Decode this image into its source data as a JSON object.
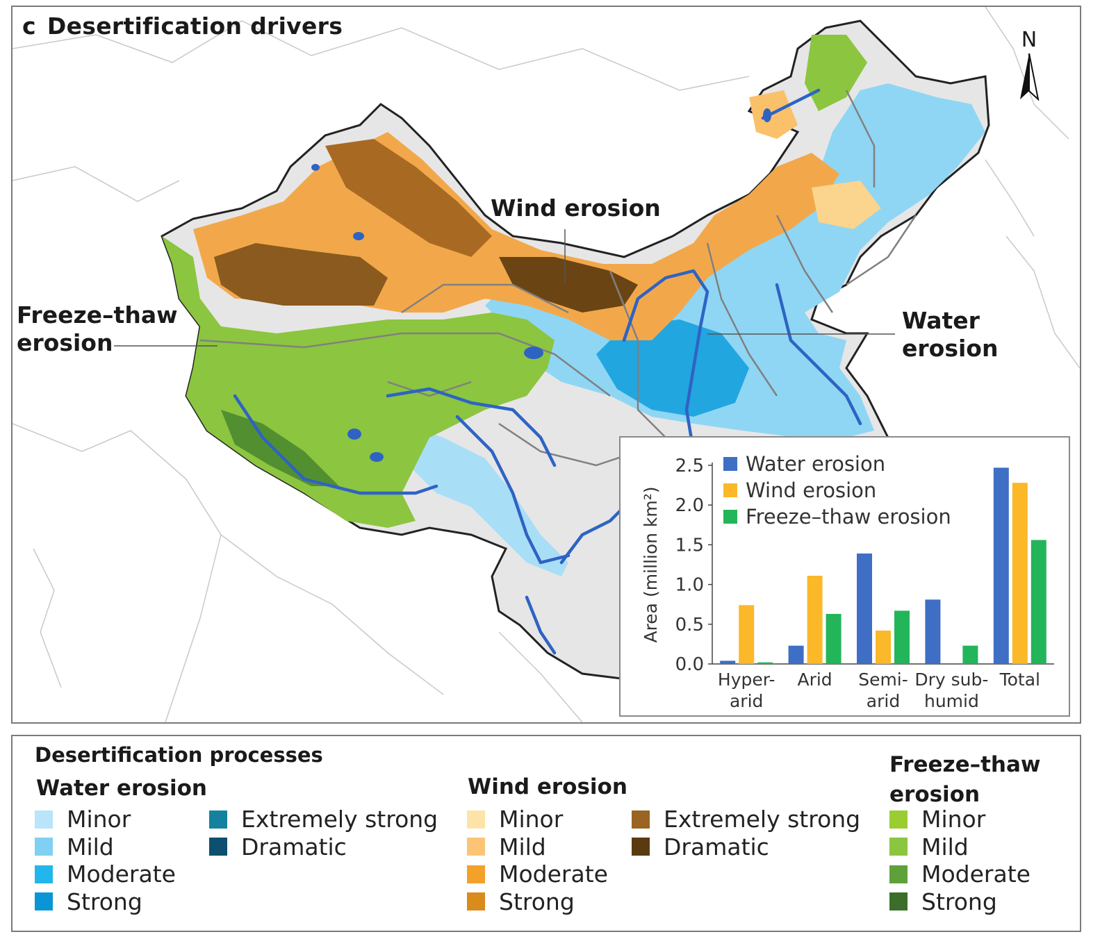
{
  "panel": {
    "letter": "c",
    "title": "Desertification drivers"
  },
  "callouts": {
    "wind": "Wind erosion",
    "freeze_thaw_line1": "Freeze–thaw",
    "freeze_thaw_line2": "erosion",
    "water_line1": "Water",
    "water_line2": "erosion"
  },
  "north_arrow": {
    "label": "N"
  },
  "colors": {
    "water": [
      "#b9e4fa",
      "#7fd0f2",
      "#22b7ec",
      "#0a96d6",
      "#14829e",
      "#0c4f70"
    ],
    "wind": [
      "#fde3a8",
      "#fcc576",
      "#f4a12a",
      "#d98b1c",
      "#9a6422",
      "#5a3a10"
    ],
    "freeze": [
      "#9acd32",
      "#8cc53f",
      "#5ea13a",
      "#3a6e2a"
    ],
    "china_gray": "#e6e6e6",
    "river": "#2e63c4"
  },
  "chart_data": {
    "type": "bar",
    "categories": [
      [
        "Hyper-",
        "arid"
      ],
      [
        "Arid",
        ""
      ],
      [
        "Semi-",
        "arid"
      ],
      [
        "Dry sub-",
        "humid"
      ],
      [
        "Total",
        ""
      ]
    ],
    "series": [
      {
        "name": "Water erosion",
        "color": "#3e6fc4",
        "values": [
          0.04,
          0.23,
          1.39,
          0.81,
          2.47
        ]
      },
      {
        "name": "Wind erosion",
        "color": "#fbb829",
        "values": [
          0.74,
          1.11,
          0.42,
          0.0,
          2.28
        ]
      },
      {
        "name": "Freeze–thaw erosion",
        "color": "#23b55a",
        "values": [
          0.02,
          0.63,
          0.67,
          0.23,
          1.56
        ]
      }
    ],
    "ylabel": "Area (million km²)",
    "ylim": [
      0,
      2.5
    ],
    "yticks": [
      "0.0",
      "0.5",
      "1.0",
      "1.5",
      "2.0",
      "2.5"
    ],
    "legend_position": "top-left",
    "grid": false
  },
  "legend": {
    "title": "Desertification processes",
    "water": {
      "title": "Water erosion",
      "items": [
        "Minor",
        "Mild",
        "Moderate",
        "Strong",
        "Extremely strong",
        "Dramatic"
      ]
    },
    "wind": {
      "title": "Wind erosion",
      "items": [
        "Minor",
        "Mild",
        "Moderate",
        "Strong",
        "Extremely strong",
        "Dramatic"
      ]
    },
    "freeze": {
      "title_line1": "Freeze–thaw",
      "title_line2": "erosion",
      "items": [
        "Minor",
        "Mild",
        "Moderate",
        "Strong"
      ]
    }
  }
}
